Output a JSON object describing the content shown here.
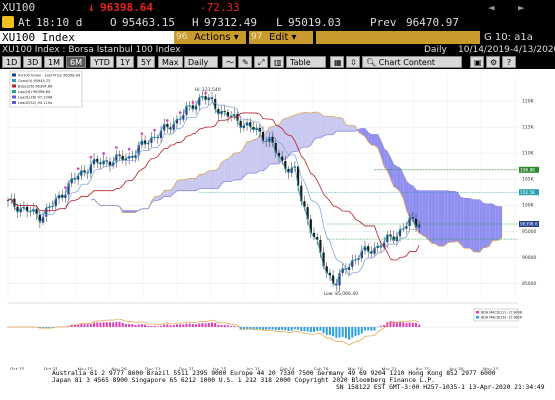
{
  "ticker_row": {
    "ticker": "XU100",
    "arrow": "↓",
    "last": "96398.64",
    "change": "-72.33",
    "nav_left": "◄",
    "nav_right": "►"
  },
  "quote_row": {
    "at_label": "At",
    "time": "18:10 d",
    "open_label": "O",
    "open": "95463.15",
    "high_label": "H",
    "high": "97312.49",
    "low_label": "L",
    "low": "95019.03",
    "prev_label": "Prev",
    "prev": "96470.97"
  },
  "command_row": {
    "security": "XU100 Index",
    "actions_num": "96",
    "actions": "Actions ▾",
    "edit_num": "97",
    "edit": "Edit ▾",
    "page": "G 10: a1a"
  },
  "title_row": {
    "title": "XU100 Index : Borsa Istanbul 100 Index",
    "periodicity": "Daily",
    "range": "10/14/2019-4/13/2020"
  },
  "toolbar": {
    "periods": [
      "1D",
      "3D",
      "1M",
      "6M",
      "YTD",
      "1Y",
      "5Y",
      "Max"
    ],
    "selected_period": "6M",
    "frequency": "Daily ▾",
    "table": "Table",
    "chart_content": "Chart Content"
  },
  "legend": [
    {
      "label": "XU100 Index - Last Price 96398.64",
      "color": "#1f3f8f"
    },
    {
      "label": "Conv(9) 95945.75",
      "color": "#2aa0b0"
    },
    {
      "label": "Base(26) 96394.66",
      "color": "#b5202a"
    },
    {
      "label": "Lag(26) 96398.64",
      "color": "#20a0a0"
    },
    {
      "label": "Lead1(26) 97.1096",
      "color": "#5b5bdc"
    },
    {
      "label": "Lead2(52) 94.119x",
      "color": "#5b5bdc"
    }
  ],
  "macd_legend": [
    {
      "label": "BDH MACD(12) -17.8498",
      "color": "#e13cb4"
    },
    {
      "label": "BDH MACD(26) -15.9628",
      "color": "#2aa0e0"
    }
  ],
  "annotations": {
    "high": "Hi: 121,540",
    "low": "Low: 85,066.40"
  },
  "y_axis": [
    "120K",
    "115K",
    "110K",
    "105K",
    "100K",
    "95000",
    "90000",
    "85000"
  ],
  "price_tags": [
    {
      "value": "106.8K",
      "color": "#2a8a2a"
    },
    {
      "value": "102.5K",
      "color": "#2aa0b0"
    },
    {
      "value": "96398.6",
      "color": "#1f3f8f"
    }
  ],
  "x_axis": [
    "Oct 15",
    "Oct 31",
    "Nov 15",
    "Nov 29",
    "Dec 13",
    "Dec 31",
    "Jan 15",
    "Jan 31",
    "Feb 14",
    "Feb 28",
    "Mar 16",
    "Mar 31",
    "Apr 15",
    "Apr 30",
    "May 15"
  ],
  "year_labels": [
    "2019",
    "2020"
  ],
  "status": {
    "line1": "Australia 61 2 9777 8600 Brazil 5511 2395 9000 Europe 44 20 7330 7500 Germany 49 69 9204 1210 Hong Kong 852 2977 6000",
    "line2": "Japan 81 3 4565 8900       Singapore 65 6212 1000       U.S. 1 212 318 2000          Copyright 2020 Bloomberg Finance L.P.",
    "line3": "SN 158122 EST  GMT-3:00 H257-1035-1 13-Apr-2020 21:34:49"
  },
  "chart_data": {
    "type": "line",
    "title": "XU100 Index : Borsa Istanbul 100 Index",
    "x": [
      "Oct 15",
      "Oct 31",
      "Nov 15",
      "Nov 29",
      "Dec 13",
      "Dec 31",
      "Jan 15",
      "Jan 31",
      "Feb 14",
      "Feb 28",
      "Mar 16",
      "Mar 31",
      "Apr 13"
    ],
    "series": [
      {
        "name": "XU100 Index - Last Price",
        "values": [
          100500,
          97500,
          105000,
          108000,
          109000,
          114000,
          121000,
          118000,
          114000,
          106000,
          88000,
          90000,
          96398
        ]
      },
      {
        "name": "Conv(9)",
        "values": [
          100000,
          98000,
          104000,
          107500,
          109500,
          113500,
          120000,
          118500,
          113000,
          110000,
          90000,
          89500,
          95946
        ]
      },
      {
        "name": "Base(26)",
        "values": [
          99500,
          99000,
          102000,
          106000,
          108000,
          112000,
          117000,
          118000,
          115500,
          112000,
          101000,
          95500,
          96395
        ]
      }
    ],
    "ylim": [
      82000,
      125000
    ]
  }
}
